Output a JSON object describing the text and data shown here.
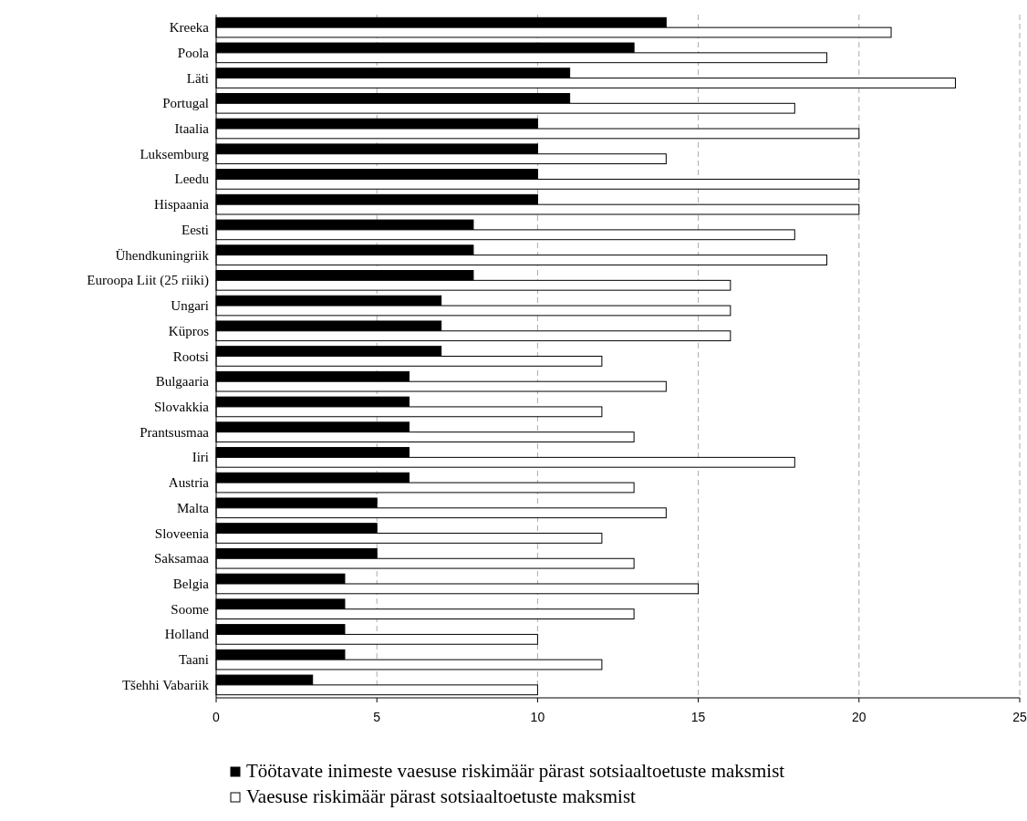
{
  "chart_data": {
    "type": "bar",
    "orientation": "horizontal",
    "categories": [
      "Kreeka",
      "Poola",
      "Läti",
      "Portugal",
      "Itaalia",
      "Luksemburg",
      "Leedu",
      "Hispaania",
      "Eesti",
      "Ühendkuningriik",
      "Euroopa Liit (25 riiki)",
      "Ungari",
      "Küpros",
      "Rootsi",
      "Bulgaaria",
      "Slovakkia",
      "Prantsusmaa",
      "Iiri",
      "Austria",
      "Malta",
      "Sloveenia",
      "Saksamaa",
      "Belgia",
      "Soome",
      "Holland",
      "Taani",
      "Tšehhi Vabariik"
    ],
    "series": [
      {
        "name": "Töötavate inimeste vaesuse riskimäär pärast sotsiaaltoetuste maksmist",
        "color": "#000000",
        "values": [
          14,
          13,
          11,
          11,
          10,
          10,
          10,
          10,
          8,
          8,
          8,
          7,
          7,
          7,
          6,
          6,
          6,
          6,
          6,
          5,
          5,
          5,
          4,
          4,
          4,
          4,
          3
        ]
      },
      {
        "name": "Vaesuse riskimäär pärast sotsiaaltoetuste maksmist",
        "color": "#ffffff",
        "values": [
          21,
          19,
          23,
          18,
          20,
          14,
          20,
          20,
          18,
          19,
          16,
          16,
          16,
          12,
          14,
          12,
          13,
          18,
          13,
          14,
          12,
          13,
          15,
          13,
          10,
          12,
          10
        ]
      }
    ],
    "xlim": [
      0,
      25
    ],
    "xticks": [
      0,
      5,
      10,
      15,
      20,
      25
    ],
    "grid": "x",
    "legend": "bottom"
  }
}
